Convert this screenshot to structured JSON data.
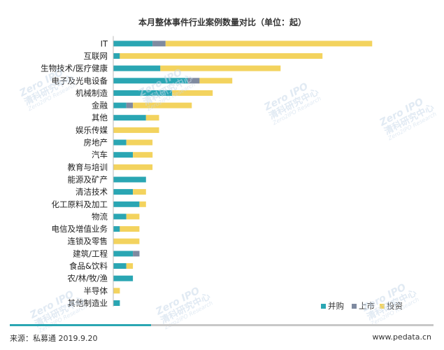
{
  "colors": {
    "merger": "#2aa6b3",
    "listing": "#7f8aa0",
    "investment": "#f3d35e",
    "accent": "#2aa6b3"
  },
  "watermark": {
    "brand": "Zero IPO",
    "cn": "清科研究中心",
    "en": "Zero2IPO Research"
  },
  "footer": {
    "source": "来源：私募通 2019.9.20",
    "site": "www.pedata.cn"
  },
  "chart_data": {
    "type": "bar",
    "orientation": "horizontal",
    "stacked": true,
    "title": "本月整体事件行业案例数量对比（单位：起）",
    "xlabel": "",
    "ylabel": "",
    "xlim": [
      0,
      200
    ],
    "grid": false,
    "legend": "bottom-right",
    "categories": [
      "IT",
      "互联网",
      "生物技术/医疗健康",
      "电子及光电设备",
      "机械制造",
      "金融",
      "其他",
      "娱乐传媒",
      "房地产",
      "汽车",
      "教育与培训",
      "能源及矿产",
      "清洁技术",
      "化工原料及加工",
      "物流",
      "电信及增值业务",
      "连锁及零售",
      "建筑/工程",
      "食品&饮料",
      "农/林/牧/渔",
      "半导体",
      "其他制造业"
    ],
    "series": [
      {
        "name": "并购",
        "key": "merger",
        "values": [
          30,
          5,
          36,
          57,
          45,
          10,
          25,
          0,
          10,
          15,
          0,
          25,
          15,
          20,
          10,
          5,
          0,
          15,
          10,
          15,
          0,
          5
        ]
      },
      {
        "name": "上市",
        "key": "listing",
        "values": [
          10,
          0,
          0,
          9,
          0,
          5,
          0,
          0,
          0,
          0,
          0,
          0,
          0,
          0,
          0,
          0,
          0,
          5,
          0,
          0,
          0,
          0
        ]
      },
      {
        "name": "投资",
        "key": "investment",
        "values": [
          158,
          155,
          92,
          25,
          31,
          45,
          10,
          35,
          20,
          15,
          30,
          0,
          10,
          5,
          10,
          15,
          20,
          0,
          5,
          0,
          5,
          0
        ]
      }
    ]
  }
}
